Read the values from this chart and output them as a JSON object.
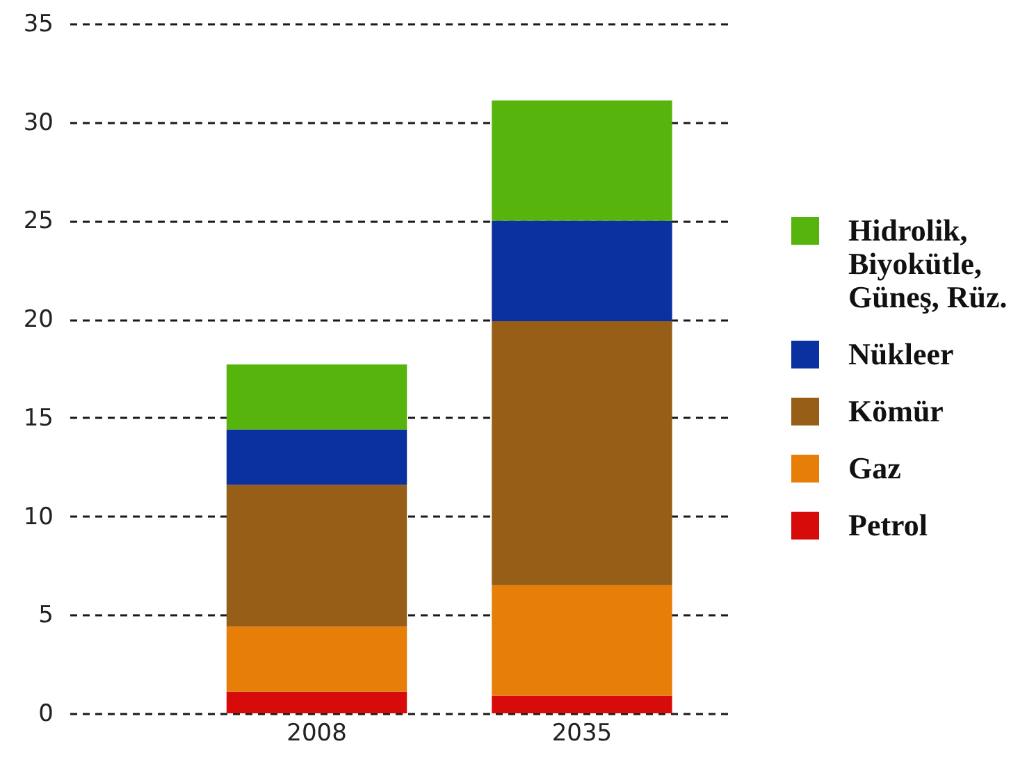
{
  "chart_data": {
    "type": "bar",
    "stacked": true,
    "categories": [
      "2008",
      "2035"
    ],
    "series": [
      {
        "name": "Petrol",
        "color": "#d80b0b",
        "values": [
          1.1,
          0.9
        ]
      },
      {
        "name": "Gaz",
        "color": "#e67e08",
        "values": [
          3.3,
          5.6
        ]
      },
      {
        "name": "Kömür",
        "color": "#965e16",
        "values": [
          7.2,
          13.4
        ]
      },
      {
        "name": "Nükleer",
        "color": "#0b30a0",
        "values": [
          2.8,
          5.1
        ]
      },
      {
        "name": "Hidrolik, Biyokütle, Güneş, Rüz.",
        "color": "#56b40c",
        "values": [
          3.3,
          6.1
        ]
      }
    ],
    "ylim": [
      0,
      35
    ],
    "yticks": [
      0,
      5,
      10,
      15,
      20,
      25,
      30,
      35
    ],
    "grid": "y",
    "legend": "right"
  }
}
